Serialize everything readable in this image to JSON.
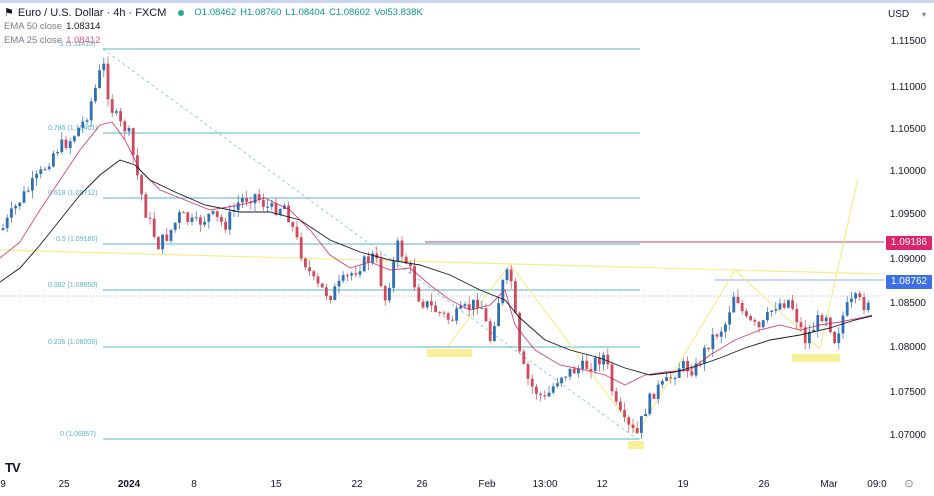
{
  "header": {
    "symbol_title": "Euro / U.S. Dollar · 4h · FXCM",
    "ohlc": {
      "open": "O1.08462",
      "high": "H1.08760",
      "low": "L1.08404",
      "close": "C1.08602",
      "volume": "Vol53.838K"
    },
    "indicators": [
      {
        "label": "EMA 50 close",
        "value": "1.08314",
        "color": "#131722"
      },
      {
        "label": "EMA 25 close",
        "value": "1.08412",
        "color": "#e91e63"
      }
    ],
    "currency": "USD"
  },
  "price_tags": [
    {
      "value": "1.09186",
      "color": "#e0246c"
    },
    {
      "value": "1.08762",
      "color": "#2962ff"
    }
  ],
  "footer": {
    "logo": "TV",
    "settings_icon": "⊙"
  },
  "chart_data": {
    "type": "candlestick",
    "title": "Euro / U.S. Dollar · 4h · FXCM",
    "xlabel": "",
    "ylabel": "USD",
    "ylim": [
      1.0675,
      1.1175
    ],
    "y_ticks": [
      "1.11500",
      "1.11000",
      "1.10500",
      "1.10000",
      "1.09500",
      "1.09000",
      "1.08500",
      "1.08000",
      "1.07500",
      "1.07000"
    ],
    "x_ticks": [
      "9",
      "25",
      "2024",
      "8",
      "15",
      "22",
      "26",
      "Feb",
      "13:00",
      "12",
      "19",
      "26",
      "Mar",
      "09:0"
    ],
    "grid": false,
    "fibonacci": {
      "levels": [
        {
          "ratio": "1",
          "price": 1.11415,
          "label": "1 (1.11415)"
        },
        {
          "ratio": "0.786",
          "price": 1.10461,
          "label": "0.786 (1.10461)"
        },
        {
          "ratio": "0.618",
          "price": 1.09712,
          "label": "0.618 (1.09712)"
        },
        {
          "ratio": "0.5",
          "price": 1.09186,
          "label": "0.5 (1.09186)"
        },
        {
          "ratio": "0.382",
          "price": 1.0866,
          "label": "0.382 (1.08660)"
        },
        {
          "ratio": "0.236",
          "price": 1.08009,
          "label": "0.236 (1.08009)"
        },
        {
          "ratio": "0",
          "price": 1.06957,
          "label": "0 (1.06957)"
        }
      ]
    },
    "horizontal_lines": [
      {
        "price": 1.09186,
        "color": "#e0246c",
        "label": "1.09186"
      },
      {
        "price": 1.08762,
        "color": "#2962ff",
        "label": "1.08762"
      }
    ],
    "series": [
      {
        "name": "EMA 50 close",
        "last": 1.08314,
        "color": "#131722"
      },
      {
        "name": "EMA 25 close",
        "last": 1.08412,
        "color": "#e91e63"
      }
    ],
    "last_price": 1.08602,
    "ohlc_last": {
      "open": 1.08462,
      "high": 1.0876,
      "low": 1.08404,
      "close": 1.08602,
      "volume": "53.838K"
    },
    "annotations": [
      "Swing high ~1.1140 late Dec 2023",
      "Swing low ~1.0696 mid Feb 2024",
      "Yellow zigzag pattern projection to ~1.099"
    ]
  }
}
